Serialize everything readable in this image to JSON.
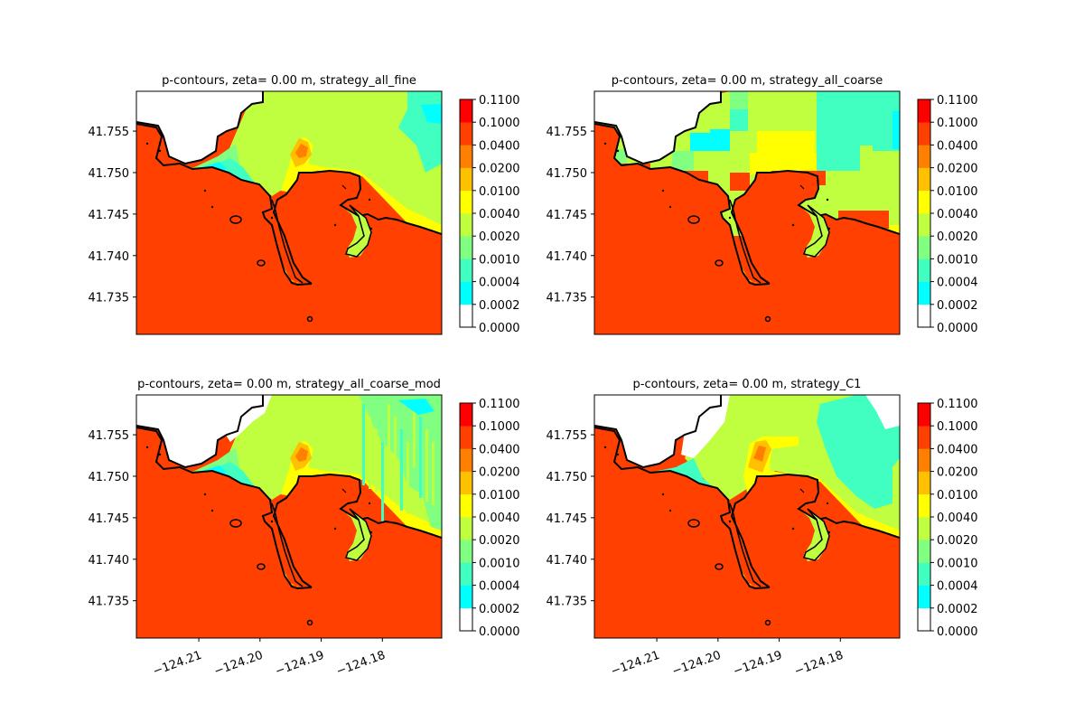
{
  "chart_data": {
    "type": "heatmap",
    "colorbar": {
      "levels": [
        "0.0000",
        "0.0002",
        "0.0004",
        "0.0010",
        "0.0020",
        "0.0040",
        "0.0100",
        "0.0200",
        "0.0400",
        "0.1000",
        "0.1100"
      ],
      "colors": [
        "#ffffff",
        "#00ffff",
        "#40ffc0",
        "#80ff80",
        "#c0ff40",
        "#ffff00",
        "#ffc000",
        "#ff8000",
        "#ff4000",
        "#ff0000"
      ]
    },
    "x_ticks": [
      "−124.21",
      "−124.20",
      "−124.19",
      "−124.18"
    ],
    "x_tick_values": [
      -124.21,
      -124.2,
      -124.19,
      -124.18
    ],
    "y_ticks": [
      "41.755",
      "41.750",
      "41.745",
      "41.740",
      "41.735"
    ],
    "y_tick_values": [
      41.755,
      41.75,
      41.745,
      41.74,
      41.735
    ],
    "xlim": [
      -124.2202,
      -124.1703
    ],
    "ylim": [
      41.7305,
      41.7598
    ],
    "panels": [
      {
        "title": "p-contours, zeta= 0.00 m, strategy_all_fine",
        "style": "fine",
        "show_xticks": false
      },
      {
        "title": "p-contours, zeta= 0.00 m, strategy_all_coarse",
        "style": "coarse",
        "show_xticks": false
      },
      {
        "title": "p-contours, zeta= 0.00 m, strategy_all_coarse_mod",
        "style": "mod",
        "show_xticks": true
      },
      {
        "title": "p-contours, zeta= 0.00 m, strategy_C1",
        "style": "c1",
        "show_xticks": true
      }
    ]
  }
}
